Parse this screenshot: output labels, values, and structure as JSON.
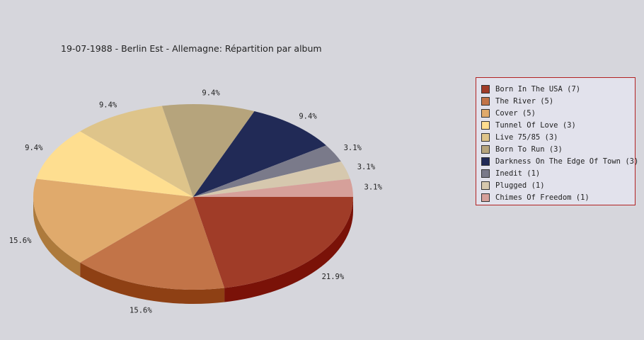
{
  "title": "19-07-1988 - Berlin Est - Allemagne:  Répartition par album",
  "chart_data": {
    "type": "pie",
    "title": "19-07-1988 - Berlin Est - Allemagne:  Répartition par album",
    "legend_position": "right",
    "slices": [
      {
        "label": "Born In The USA (7)",
        "value": 7,
        "percent_label": "21.9%",
        "color": "#a03c28",
        "side": "#7a1208"
      },
      {
        "label": "The River (5)",
        "value": 5,
        "percent_label": "15.6%",
        "color": "#c27448",
        "side": "#8e4014"
      },
      {
        "label": "Cover (5)",
        "value": 5,
        "percent_label": "15.6%",
        "color": "#e0aa6c",
        "side": "#ad7a3c"
      },
      {
        "label": "Tunnel Of Love (3)",
        "value": 3,
        "percent_label": "9.4%",
        "color": "#fede90",
        "side": "#c8a860"
      },
      {
        "label": "Live 75/85 (3)",
        "value": 3,
        "percent_label": "9.4%",
        "color": "#dec48a",
        "side": "#a89058"
      },
      {
        "label": "Born To Run (3)",
        "value": 3,
        "percent_label": "9.4%",
        "color": "#b6a47c",
        "side": "#86744c"
      },
      {
        "label": "Darkness On The Edge Of Town (3)",
        "value": 3,
        "percent_label": "9.4%",
        "color": "#212a56",
        "side": "#101530"
      },
      {
        "label": "Inedit (1)",
        "value": 1,
        "percent_label": "3.1%",
        "color": "#7a7a8a",
        "side": "#4a4a5a"
      },
      {
        "label": "Plugged (1)",
        "value": 1,
        "percent_label": "3.1%",
        "color": "#d6c8ae",
        "side": "#a6987e"
      },
      {
        "label": "Chimes Of Freedom (1)",
        "value": 1,
        "percent_label": "3.1%",
        "color": "#d6a09a",
        "side": "#a6706a"
      }
    ]
  }
}
